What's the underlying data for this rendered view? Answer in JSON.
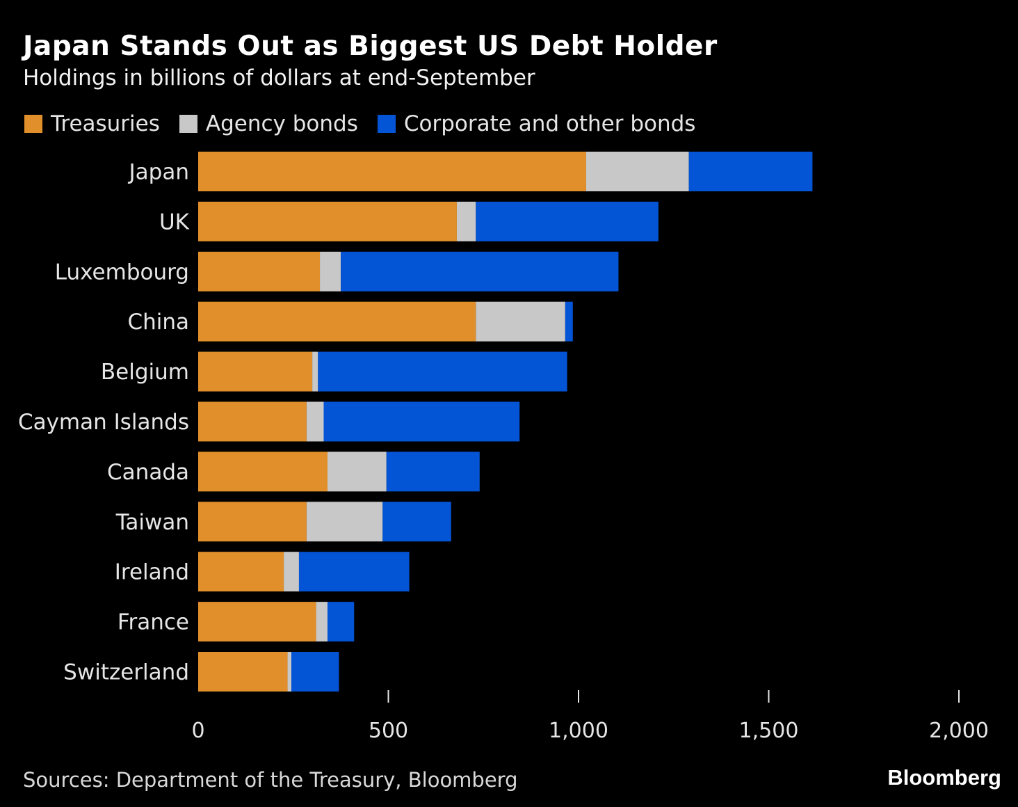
{
  "chart_data": {
    "type": "bar",
    "orientation": "horizontal",
    "stacked": true,
    "title": "Japan Stands Out as Biggest US Debt Holder",
    "subtitle": "Holdings in billions of dollars at end-September",
    "categories": [
      "Japan",
      "UK",
      "Luxembourg",
      "China",
      "Belgium",
      "Cayman Islands",
      "Canada",
      "Taiwan",
      "Ireland",
      "France",
      "Switzerland"
    ],
    "series": [
      {
        "name": "Treasuries",
        "color": "#e08f2a",
        "values": [
          1020,
          680,
          320,
          730,
          300,
          285,
          340,
          285,
          225,
          310,
          235
        ]
      },
      {
        "name": "Agency bonds",
        "color": "#c8c8c8",
        "values": [
          270,
          50,
          55,
          235,
          15,
          45,
          155,
          200,
          40,
          30,
          10
        ]
      },
      {
        "name": "Corporate and other bonds",
        "color": "#0454d6",
        "values": [
          325,
          480,
          730,
          20,
          655,
          515,
          245,
          180,
          290,
          70,
          125
        ]
      }
    ],
    "xlim": [
      0,
      2000
    ],
    "xticks": [
      "0",
      "500",
      "1,000",
      "1,500",
      "2,000"
    ],
    "xtick_values": [
      0,
      500,
      1000,
      1500,
      2000
    ],
    "legend_position": "top-left",
    "grid": false
  },
  "footer": {
    "source": "Sources: Department of the Treasury, Bloomberg",
    "brand": "Bloomberg"
  },
  "colors": {
    "background": "#000000",
    "text": "#ffffff"
  }
}
